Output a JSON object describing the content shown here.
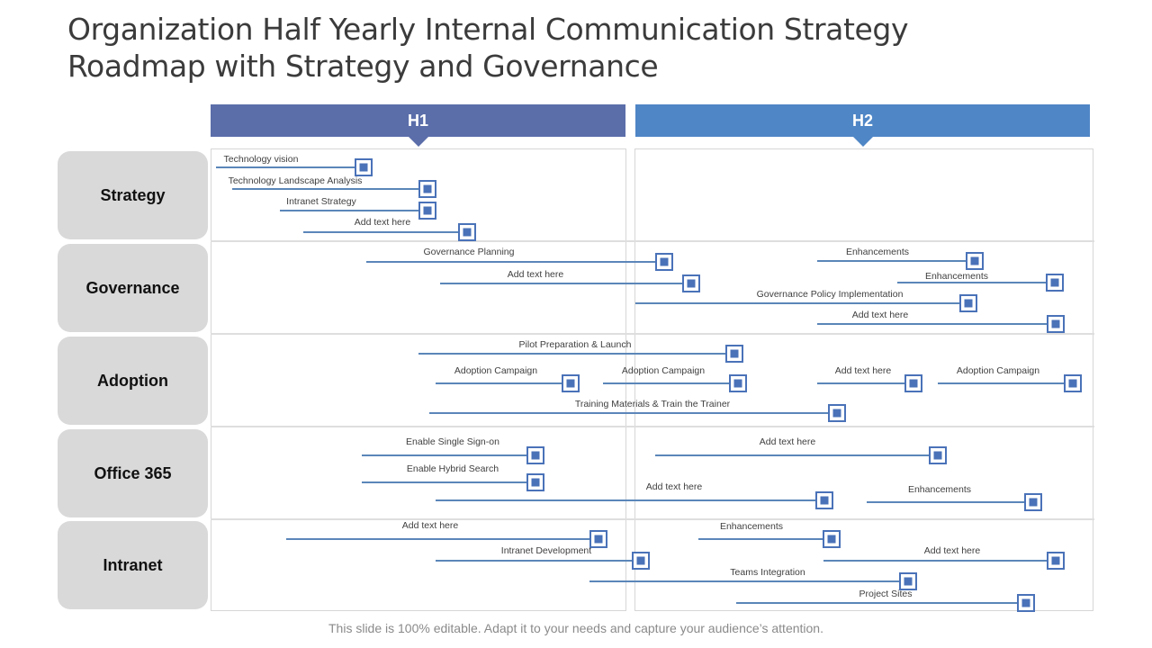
{
  "title": {
    "line1": "Organization Half Yearly Internal Communication Strategy",
    "line2": "Roadmap with Strategy and Governance"
  },
  "periods": [
    "H1",
    "H2"
  ],
  "rows": [
    "Strategy",
    "Governance",
    "Adoption",
    "Office 365",
    "Intranet"
  ],
  "tasks": {
    "strategy": [
      {
        "label": "Technology vision"
      },
      {
        "label": "Technology Landscape Analysis"
      },
      {
        "label": "Intranet Strategy"
      },
      {
        "label": "Add text here"
      }
    ],
    "governance": [
      {
        "label": "Governance Planning"
      },
      {
        "label": "Add text here"
      },
      {
        "label": "Governance Policy Implementation"
      },
      {
        "label": "Enhancements"
      },
      {
        "label": "Enhancements"
      },
      {
        "label": "Add text here"
      }
    ],
    "adoption": [
      {
        "label": "Pilot Preparation & Launch"
      },
      {
        "label": "Adoption Campaign"
      },
      {
        "label": "Adoption Campaign"
      },
      {
        "label": "Add text here"
      },
      {
        "label": "Adoption Campaign"
      },
      {
        "label": "Training Materials & Train the Trainer"
      }
    ],
    "office365": [
      {
        "label": "Enable Single Sign-on"
      },
      {
        "label": "Enable Hybrid Search"
      },
      {
        "label": "Add text here"
      },
      {
        "label": "Add text here"
      },
      {
        "label": "Enhancements"
      }
    ],
    "intranet": [
      {
        "label": "Add text here"
      },
      {
        "label": "Intranet Development"
      },
      {
        "label": "Teams Integration"
      },
      {
        "label": "Enhancements"
      },
      {
        "label": "Add text here"
      },
      {
        "label": "Project Sites"
      }
    ]
  },
  "footer": "This slide is 100% editable. Adapt it to your needs and capture your audience’s attention.",
  "colors": {
    "h1": "#5b6eaa",
    "h2": "#4f86c6",
    "task_line": "#5b86b9",
    "milestone": "#4a72b8",
    "row_label_bg": "#d9d9d9"
  }
}
